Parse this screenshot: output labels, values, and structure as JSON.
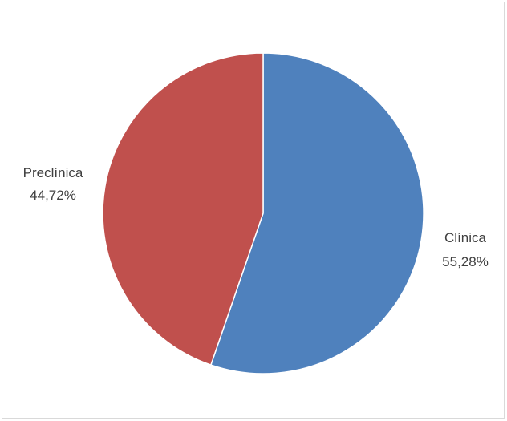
{
  "chart_data": {
    "type": "pie",
    "title": "",
    "slices": [
      {
        "name": "Clínica",
        "value": 55.28,
        "label": "55,28%",
        "color": "#4f81bd"
      },
      {
        "name": "Preclínica",
        "value": 44.72,
        "label": "44,72%",
        "color": "#c0504d"
      }
    ],
    "start": "12 o'clock",
    "direction": "clockwise",
    "legend": "none",
    "data_labels": "outside, category name and percentage"
  }
}
